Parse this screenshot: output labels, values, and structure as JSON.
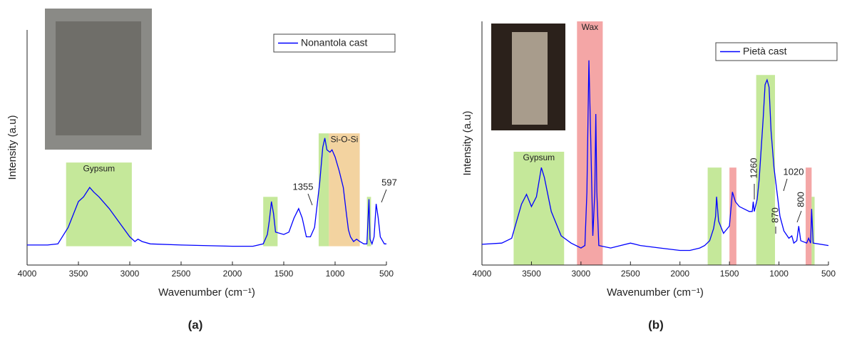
{
  "chart_data": [
    {
      "type": "line",
      "x_label": "Wavenumber (cm⁻¹)",
      "y_label": "Intensity (a.u)",
      "panel_label": "(a)",
      "xlim": [
        4000,
        500
      ],
      "xticks": [
        4000,
        3500,
        3000,
        2500,
        2000,
        1500,
        1000,
        500
      ],
      "ylim": [
        0,
        100
      ],
      "legend": "upper right",
      "bands": [
        {
          "from": 3620,
          "to": 2980,
          "top": 43.6,
          "bottom": 8,
          "color": "#c5e89a",
          "label": "Gypsum"
        },
        {
          "from": 1700,
          "to": 1560,
          "top": 29,
          "bottom": 8,
          "color": "#c5e89a"
        },
        {
          "from": 1160,
          "to": 1060,
          "top": 56,
          "bottom": 8,
          "color": "#c5e89a"
        },
        {
          "from": 1060,
          "to": 760,
          "top": 56,
          "bottom": 8,
          "color": "#f3d3a0",
          "label": "Si-O-Si"
        },
        {
          "from": 690,
          "to": 650,
          "top": 29,
          "bottom": 8,
          "color": "#c5e89a"
        }
      ],
      "annotations": [
        "1355",
        "597"
      ],
      "series": [
        {
          "name": "Nonantola cast",
          "color": "#0000ff",
          "x": [
            4000,
            3800,
            3700,
            3600,
            3500,
            3450,
            3390,
            3350,
            3300,
            3200,
            3100,
            3000,
            2950,
            2920,
            2880,
            2800,
            2500,
            2000,
            1800,
            1700,
            1660,
            1640,
            1620,
            1600,
            1580,
            1500,
            1450,
            1400,
            1355,
            1320,
            1280,
            1240,
            1200,
            1150,
            1120,
            1100,
            1080,
            1050,
            1030,
            1000,
            960,
            920,
            890,
            870,
            850,
            820,
            790,
            760,
            720,
            690,
            670,
            660,
            640,
            620,
            600,
            580,
            560,
            520,
            500
          ],
          "values": [
            8.5,
            8.5,
            9,
            16,
            27,
            29,
            33,
            31,
            29,
            24,
            18,
            12,
            10,
            11,
            10,
            9,
            8.5,
            8,
            8,
            9,
            13,
            19,
            27,
            22,
            14,
            13,
            14,
            20,
            24,
            20,
            12,
            12,
            16,
            35,
            50,
            54,
            49,
            48,
            49,
            46,
            40,
            33,
            22,
            15,
            12,
            10,
            11,
            10,
            9,
            9,
            28,
            11,
            9,
            12,
            26,
            20,
            12,
            9,
            9
          ]
        }
      ]
    },
    {
      "type": "line",
      "x_label": "Wavenumber (cm⁻¹)",
      "y_label": "Intensity (a.u)",
      "panel_label": "(b)",
      "xlim": [
        4000,
        500
      ],
      "xticks": [
        4000,
        3500,
        3000,
        2500,
        2000,
        1500,
        1000,
        500
      ],
      "ylim": [
        0,
        100
      ],
      "legend": "upper right",
      "bands": [
        {
          "from": 3680,
          "to": 3170,
          "top": 46.5,
          "bottom": 0,
          "color": "#c5e89a",
          "label": "Gypsum"
        },
        {
          "from": 3040,
          "to": 2780,
          "top": 100,
          "bottom": 0,
          "color": "#f4a6a6",
          "label": "Wax"
        },
        {
          "from": 1720,
          "to": 1580,
          "top": 40,
          "bottom": 0,
          "color": "#c5e89a"
        },
        {
          "from": 1500,
          "to": 1430,
          "top": 40,
          "bottom": 0,
          "color": "#f4a6a6"
        },
        {
          "from": 1230,
          "to": 1040,
          "top": 78,
          "bottom": 0,
          "color": "#c5e89a"
        },
        {
          "from": 730,
          "to": 670,
          "top": 40,
          "bottom": 0,
          "color": "#f4a6a6"
        },
        {
          "from": 670,
          "to": 640,
          "top": 28,
          "bottom": 0,
          "color": "#c5e89a"
        }
      ],
      "annotations": [
        "1260",
        "1020",
        "870",
        "800"
      ],
      "series": [
        {
          "name": "Pietà cast",
          "color": "#0000ff",
          "x": [
            4000,
            3800,
            3700,
            3650,
            3600,
            3550,
            3500,
            3450,
            3400,
            3370,
            3300,
            3200,
            3100,
            3000,
            2960,
            2940,
            2920,
            2900,
            2880,
            2860,
            2850,
            2840,
            2820,
            2700,
            2600,
            2500,
            2400,
            2200,
            2000,
            1900,
            1800,
            1750,
            1700,
            1660,
            1640,
            1630,
            1610,
            1560,
            1500,
            1470,
            1440,
            1400,
            1300,
            1270,
            1260,
            1250,
            1220,
            1200,
            1160,
            1140,
            1120,
            1100,
            1080,
            1050,
            1020,
            990,
            950,
            900,
            870,
            850,
            820,
            800,
            780,
            720,
            700,
            680,
            670,
            655,
            500
          ],
          "values": [
            8.5,
            9,
            11,
            18,
            25,
            29,
            24,
            28,
            40,
            36,
            22,
            12,
            9,
            7,
            8,
            30,
            84,
            50,
            12,
            30,
            62,
            30,
            8,
            7,
            8,
            9,
            8,
            7,
            6,
            6,
            7,
            8,
            10,
            15,
            20,
            28,
            18,
            13,
            16,
            30,
            26,
            24,
            22,
            22,
            26,
            22,
            27,
            35,
            60,
            74,
            76,
            73,
            55,
            40,
            30,
            20,
            14,
            11,
            12,
            9,
            10,
            16,
            10,
            9,
            11,
            9,
            23,
            9,
            8
          ]
        }
      ]
    }
  ]
}
